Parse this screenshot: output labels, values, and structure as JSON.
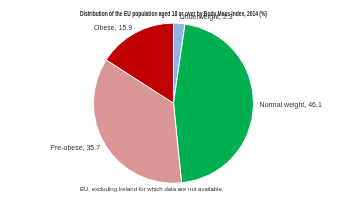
{
  "chart_data": {
    "type": "pie",
    "title": "Distribution of the EU population aged 18 or over by Body Mass Index, 2014 (%)",
    "footnote": "EU, excluding Ireland for which data are not available.",
    "categories": [
      "Underweight",
      "Normal weight",
      "Pre-obese",
      "Obese"
    ],
    "values": [
      2.3,
      46.1,
      35.7,
      15.9
    ],
    "value_labels": [
      "Underweight, 2.3",
      "Normal weight, 46.1",
      "Pre-obese, 35.7",
      "Obese, 15.9"
    ],
    "colors": [
      "#8db4e2",
      "#00b050",
      "#da9694",
      "#c00000"
    ],
    "data_labels": true
  }
}
